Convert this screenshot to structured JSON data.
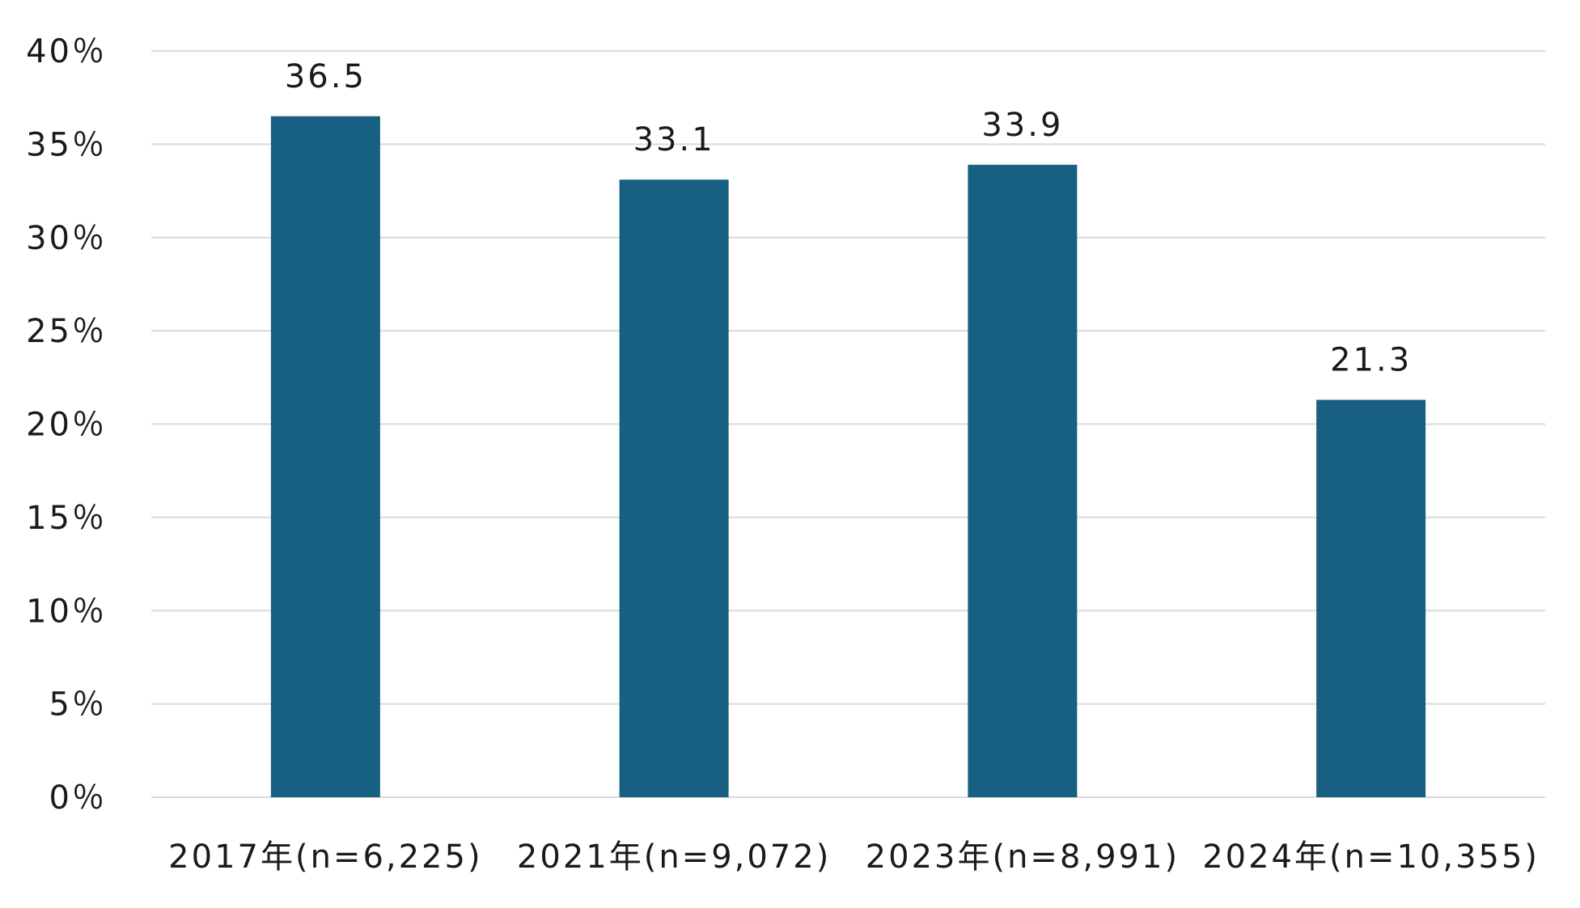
{
  "chart_data": {
    "type": "bar",
    "categories": [
      "2017年(n=6,225)",
      "2021年(n=9,072)",
      "2023年(n=8,991)",
      "2024年(n=10,355)"
    ],
    "values": [
      36.5,
      33.1,
      33.9,
      21.3
    ],
    "data_labels": [
      "36.5",
      "33.1",
      "33.9",
      "21.3"
    ],
    "ylim": [
      0,
      40
    ],
    "y_ticks": [
      0,
      5,
      10,
      15,
      20,
      25,
      30,
      35,
      40
    ],
    "y_tick_labels": [
      "0％",
      "5％",
      "10％",
      "15％",
      "20％",
      "25％",
      "30％",
      "35％",
      "40％"
    ],
    "grid": true,
    "legend": "none",
    "bar_color": "#176082",
    "grid_color": "#d9d9d9"
  }
}
